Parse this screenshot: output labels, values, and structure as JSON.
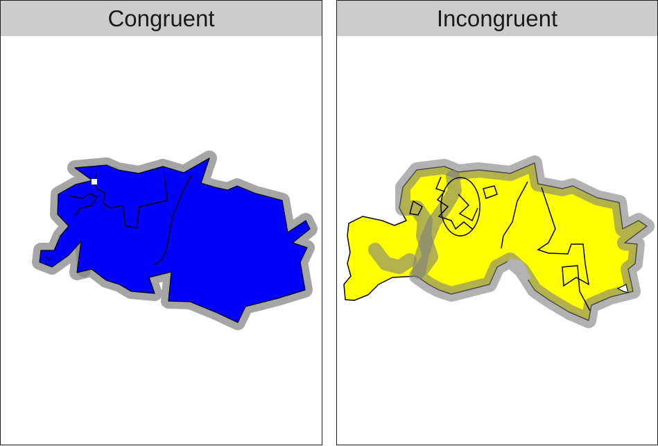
{
  "panels": [
    {
      "strip_label": "Congruent",
      "fill_color": "#0000ff"
    },
    {
      "strip_label": "Incongruent",
      "fill_color": "#ffff00"
    }
  ],
  "halo_color": "#7f7f7f",
  "outline_color": "#000000"
}
